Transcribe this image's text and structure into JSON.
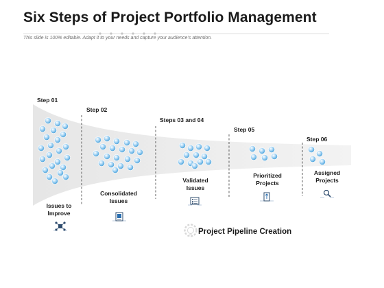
{
  "slide": {
    "title": "Six Steps of Project Portfolio Management",
    "subtitle": "This slide is 100% editable. Adapt it to your needs and capture your audience’s attention."
  },
  "steps": [
    {
      "label": "Step 01",
      "caption": "Issues to Improve",
      "icon": "network-nodes-icon"
    },
    {
      "label": "Step 02",
      "caption": "Consolidated Issues",
      "icon": "merge-document-icon"
    },
    {
      "label": "Steps 03 and 04",
      "caption": "Validated Issues",
      "icon": "checklist-document-icon"
    },
    {
      "label": "Step 05",
      "caption": "Prioritized Projects",
      "icon": "priority-document-icon"
    },
    {
      "label": "Step 06",
      "caption": "Assigned Projects",
      "icon": "search-magnifier-icon"
    }
  ],
  "pipeline": {
    "caption": "Project Pipeline Creation",
    "icon": "gear-lightbulb-icon"
  },
  "colors": {
    "funnel": "#ececec",
    "bubble_light": "#a9d6f5",
    "bubble_dark": "#3c9ad6",
    "icon": "#2f4c6e"
  }
}
